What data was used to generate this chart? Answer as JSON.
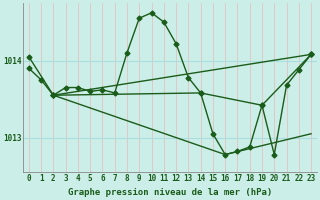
{
  "xlabel": "Graphe pression niveau de la mer (hPa)",
  "background_color": "#cceee8",
  "grid_color_v": "#e8b8b8",
  "grid_color_h": "#aadddd",
  "line_color": "#1a5c1a",
  "xlim": [
    -0.5,
    23.5
  ],
  "ylim": [
    1012.55,
    1014.75
  ],
  "yticks": [
    1013,
    1014
  ],
  "xticks": [
    0,
    1,
    2,
    3,
    4,
    5,
    6,
    7,
    8,
    9,
    10,
    11,
    12,
    13,
    14,
    15,
    16,
    17,
    18,
    19,
    20,
    21,
    22,
    23
  ],
  "series1_x": [
    0,
    1,
    2,
    3,
    4,
    5,
    6,
    7,
    8,
    9,
    10,
    11,
    12,
    13,
    14,
    15,
    16,
    17,
    18,
    19,
    20,
    21,
    22,
    23
  ],
  "series1_y": [
    1013.9,
    1013.75,
    1013.55,
    1013.65,
    1013.65,
    1013.6,
    1013.62,
    1013.58,
    1014.1,
    1014.55,
    1014.62,
    1014.5,
    1014.22,
    1013.78,
    1013.58,
    1013.05,
    1012.78,
    1012.82,
    1012.88,
    1013.42,
    1012.78,
    1013.68,
    1013.88,
    1014.08
  ],
  "series2_x": [
    0,
    2,
    23
  ],
  "series2_y": [
    1014.05,
    1013.55,
    1014.08
  ],
  "series3_x": [
    2,
    14,
    19,
    23
  ],
  "series3_y": [
    1013.55,
    1013.58,
    1013.42,
    1014.08
  ],
  "series4_x": [
    2,
    16,
    23
  ],
  "series4_y": [
    1013.55,
    1012.78,
    1013.05
  ],
  "marker": "D",
  "markersize": 2.5,
  "linewidth": 1.0,
  "tick_fontsize": 5.5,
  "xlabel_fontsize": 6.5
}
